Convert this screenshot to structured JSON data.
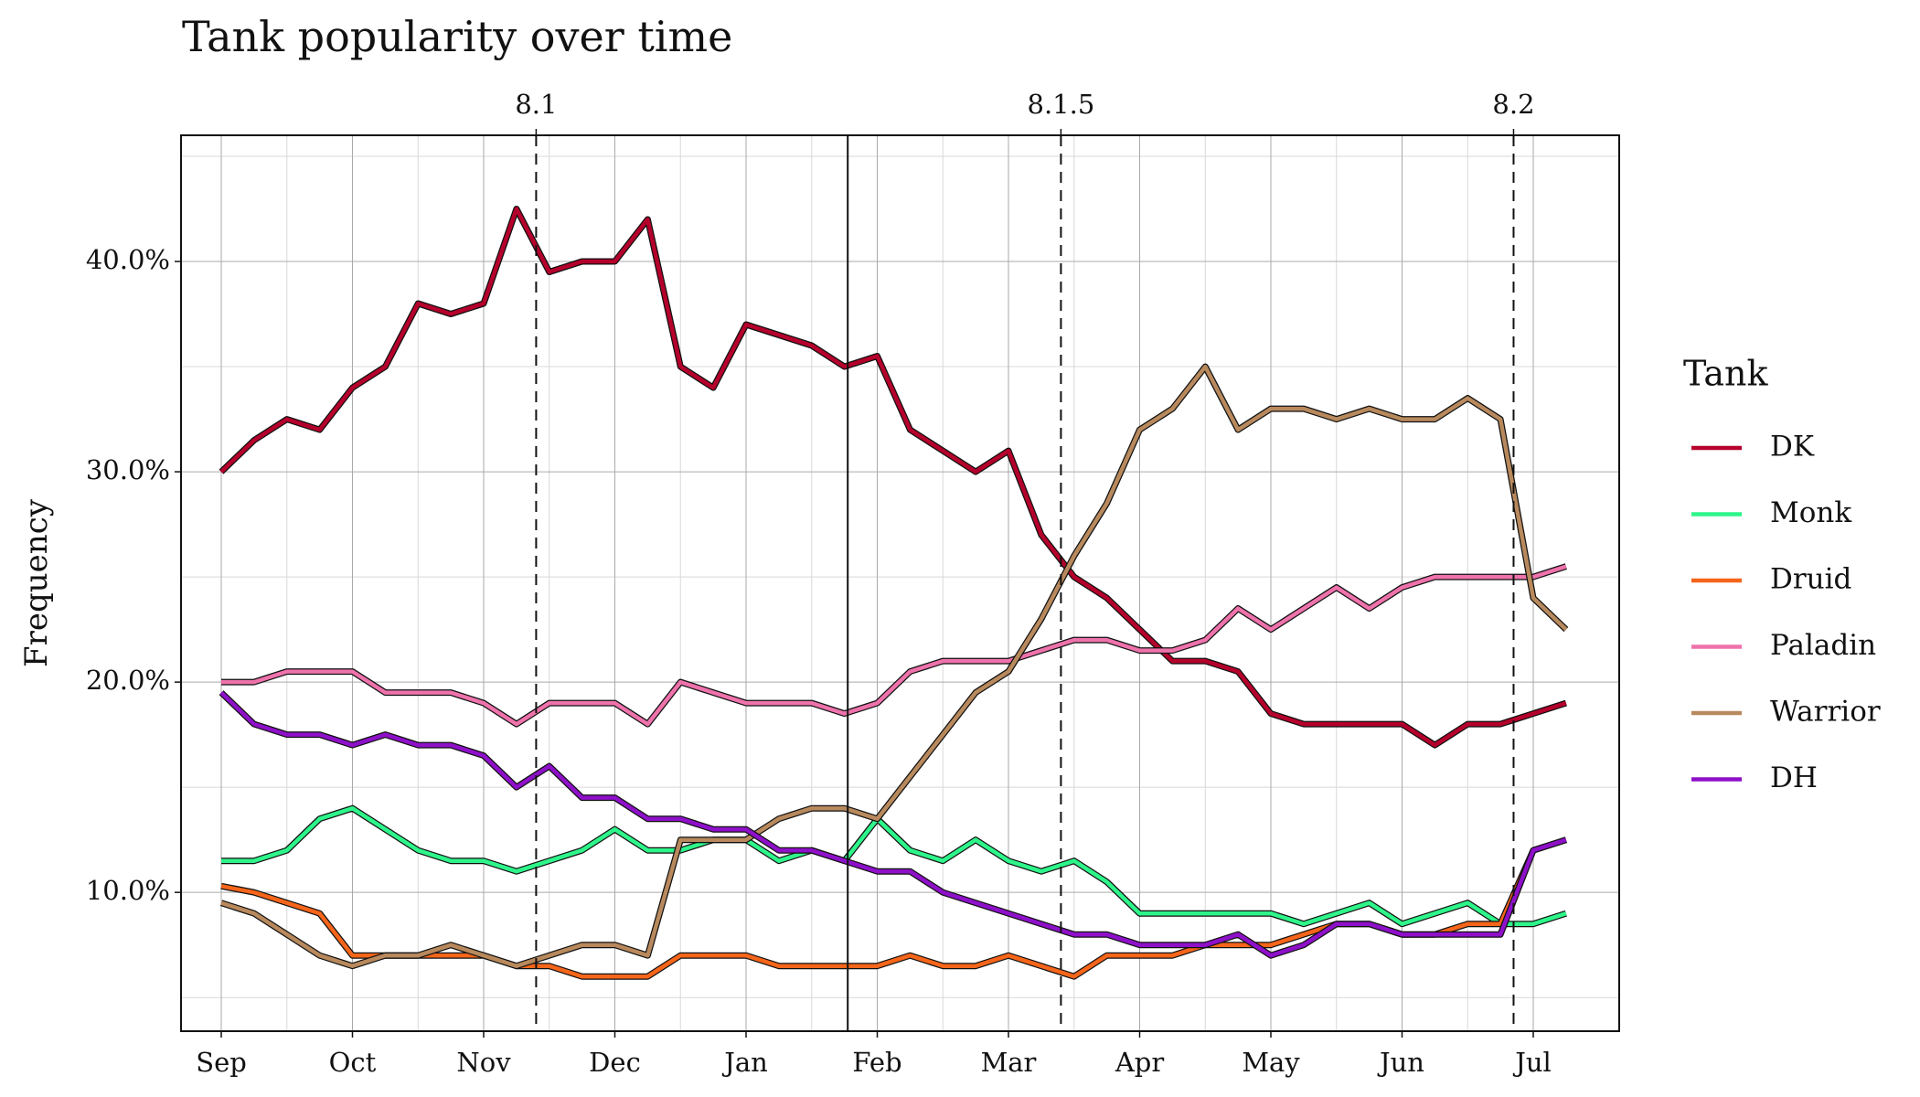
{
  "chart_data": {
    "type": "line",
    "title": "Tank popularity over time",
    "y_label": "Frequency",
    "legend_title": "Tank",
    "legend_position": "right",
    "grid": true,
    "categories": [
      "Sep",
      null,
      null,
      null,
      "Oct",
      null,
      null,
      null,
      "Nov",
      null,
      null,
      null,
      "Dec",
      null,
      null,
      null,
      "Jan",
      null,
      null,
      null,
      "Feb",
      null,
      null,
      null,
      "Mar",
      null,
      null,
      null,
      "Apr",
      null,
      null,
      null,
      "May",
      null,
      null,
      null,
      "Jun",
      null,
      null,
      null,
      "Jul",
      null
    ],
    "ylim": [
      3.4,
      46
    ],
    "yticks": [
      {
        "value": 10,
        "label": "10.0%"
      },
      {
        "value": 20,
        "label": "20.0%"
      },
      {
        "value": 30,
        "label": "30.0%"
      },
      {
        "value": 40,
        "label": "40.0%"
      }
    ],
    "y_minor_grid": [
      5,
      15,
      25,
      35,
      45
    ],
    "vlines": [
      {
        "label": "8.1",
        "x": 9.6,
        "style": "dashed"
      },
      {
        "x": 19.1,
        "style": "solid"
      },
      {
        "label": "8.1.5",
        "x": 25.6,
        "style": "dashed"
      },
      {
        "label": "8.2",
        "x": 39.4,
        "style": "dashed"
      }
    ],
    "series": [
      {
        "name": "DK",
        "color": "#b5002c",
        "values": [
          30,
          31.5,
          32.5,
          32,
          34,
          35,
          38,
          37.5,
          38,
          42.5,
          39.5,
          40,
          40,
          42,
          35,
          34,
          37,
          36.5,
          36,
          35,
          35.5,
          32,
          31,
          30,
          31,
          27,
          25,
          24,
          22.5,
          21,
          21,
          20.5,
          18.5,
          18,
          18,
          18,
          18,
          17,
          18,
          18,
          18.5,
          19
        ]
      },
      {
        "name": "Monk",
        "color": "#2ef58a",
        "values": [
          11.5,
          11.5,
          12,
          13.5,
          14,
          13,
          12,
          11.5,
          11.5,
          11,
          11.5,
          12,
          13,
          12,
          12,
          12.5,
          12.5,
          11.5,
          12,
          11.5,
          13.5,
          12,
          11.5,
          12.5,
          11.5,
          11,
          11.5,
          10.5,
          9,
          9,
          9,
          9,
          9,
          8.5,
          9,
          9.5,
          8.5,
          9,
          9.5,
          8.5,
          8.5,
          9
        ]
      },
      {
        "name": "Druid",
        "color": "#f5651a",
        "values": [
          10.3,
          10,
          9.5,
          9,
          7,
          7,
          7,
          7,
          7,
          6.5,
          6.5,
          6,
          6,
          6,
          7,
          7,
          7,
          6.5,
          6.5,
          6.5,
          6.5,
          7,
          6.5,
          6.5,
          7,
          6.5,
          6,
          7,
          7,
          7,
          7.5,
          7.5,
          7.5,
          8,
          8.5,
          8.5,
          8,
          8,
          8.5,
          8.5,
          12,
          12.5
        ]
      },
      {
        "name": "Paladin",
        "color": "#ee72ab",
        "values": [
          20,
          20,
          20.5,
          20.5,
          20.5,
          19.5,
          19.5,
          19.5,
          19,
          18,
          19,
          19,
          19,
          18,
          20,
          19.5,
          19,
          19,
          19,
          18.5,
          19,
          20.5,
          21,
          21,
          21,
          21.5,
          22,
          22,
          21.5,
          21.5,
          22,
          23.5,
          22.5,
          23.5,
          24.5,
          23.5,
          24.5,
          25,
          25,
          25,
          25,
          25.5
        ]
      },
      {
        "name": "Warrior",
        "color": "#b8895d",
        "values": [
          9.5,
          9,
          8,
          7,
          6.5,
          7,
          7,
          7.5,
          7,
          6.5,
          7,
          7.5,
          7.5,
          7,
          12.5,
          12.5,
          12.5,
          13.5,
          14,
          14,
          13.5,
          15.5,
          17.5,
          19.5,
          20.5,
          23,
          26,
          28.5,
          32,
          33,
          35,
          32,
          33,
          33,
          32.5,
          33,
          32.5,
          32.5,
          33.5,
          32.5,
          24,
          22.5
        ]
      },
      {
        "name": "DH",
        "color": "#8e10c9",
        "values": [
          19.5,
          18,
          17.5,
          17.5,
          17,
          17.5,
          17,
          17,
          16.5,
          15,
          16,
          14.5,
          14.5,
          13.5,
          13.5,
          13,
          13,
          12,
          12,
          11.5,
          11,
          11,
          10,
          9.5,
          9,
          8.5,
          8,
          8,
          7.5,
          7.5,
          7.5,
          8,
          7,
          7.5,
          8.5,
          8.5,
          8,
          8,
          8,
          8,
          12,
          12.5
        ]
      }
    ]
  }
}
